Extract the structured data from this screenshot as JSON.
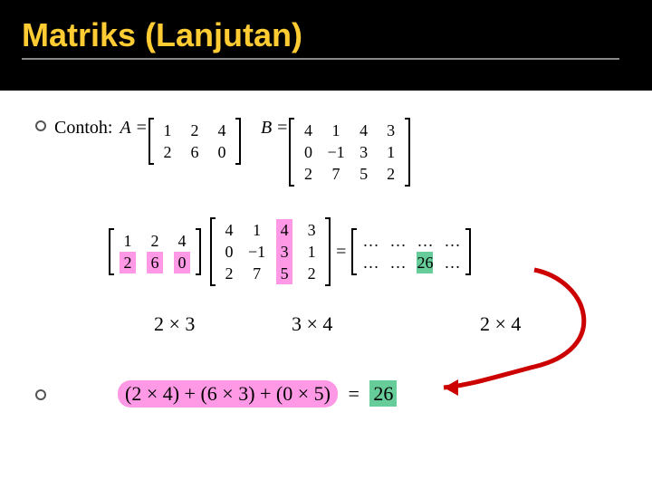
{
  "title": "Matriks (Lanjutan)",
  "bullet_label": "Contoh:",
  "matrixA": {
    "label": "A",
    "rows": [
      [
        "1",
        "2",
        "4"
      ],
      [
        "2",
        "6",
        "0"
      ]
    ]
  },
  "matrixB": {
    "label": "B",
    "rows": [
      [
        "4",
        "1",
        "4",
        "3"
      ],
      [
        "0",
        "−1",
        "3",
        "1"
      ],
      [
        "2",
        "7",
        "5",
        "2"
      ]
    ]
  },
  "mult": {
    "left": {
      "rows": [
        [
          "1",
          "2",
          "4"
        ],
        [
          "2",
          "6",
          "0"
        ]
      ],
      "highlight_row": 1,
      "highlight_color": "#ff99e6"
    },
    "right": {
      "rows": [
        [
          "4",
          "1",
          "4",
          "3"
        ],
        [
          "0",
          "−1",
          "3",
          "1"
        ],
        [
          "2",
          "7",
          "5",
          "2"
        ]
      ],
      "highlight_col": 2,
      "highlight_color": "#ff99e6"
    },
    "result": {
      "rows": [
        [
          "…",
          "…",
          "…",
          "…"
        ],
        [
          "…",
          "…",
          "26",
          "…"
        ]
      ],
      "highlight_cell": {
        "r": 1,
        "c": 2,
        "color": "#66cc99"
      }
    }
  },
  "dimensions": {
    "left": "2 × 3",
    "middle": "3 × 4",
    "right": "2 × 4"
  },
  "computation": {
    "expr_parts": [
      "(2 × 4) + (6 × 3) + (0 × 5)",
      "=",
      "26"
    ],
    "pill_color": "#ff99e6",
    "result_color": "#66cc99"
  },
  "colors": {
    "title": "#ffcc33",
    "header_bg": "#000000",
    "arrow": "#cc0000",
    "text": "#000000"
  },
  "bullet_ring_color": "#555555"
}
